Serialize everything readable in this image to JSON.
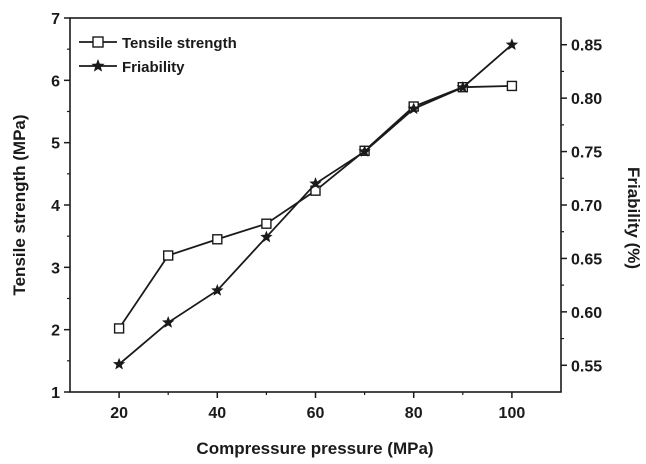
{
  "chart_data": {
    "type": "line",
    "x_label": "Compressure pressure (MPa)",
    "y_left_label": "Tensile strength (MPa)",
    "y_right_label": "Friability (%)",
    "x_range": [
      10,
      110
    ],
    "y_left_range": [
      1,
      7
    ],
    "y_right_range": [
      0.525,
      0.875
    ],
    "x_ticks": [
      20,
      40,
      60,
      80,
      100
    ],
    "x_tick_labels": [
      "20",
      "40",
      "60",
      "80",
      "100"
    ],
    "y_left_ticks": [
      1,
      2,
      3,
      4,
      5,
      6,
      7
    ],
    "y_left_tick_labels": [
      "1",
      "2",
      "3",
      "4",
      "5",
      "6",
      "7"
    ],
    "y_right_ticks": [
      0.55,
      0.6,
      0.65,
      0.7,
      0.75,
      0.8,
      0.85
    ],
    "y_right_tick_labels": [
      "0.55",
      "0.60",
      "0.65",
      "0.70",
      "0.75",
      "0.80",
      "0.85"
    ],
    "grid": false,
    "legend_position": "top-left",
    "x": [
      20,
      30,
      40,
      50,
      60,
      70,
      80,
      90,
      100
    ],
    "series": [
      {
        "name": "Tensile strength",
        "axis": "left",
        "marker": "open-square",
        "color": "#1a1a1a",
        "values": [
          2.02,
          3.19,
          3.45,
          3.7,
          4.23,
          4.87,
          5.58,
          5.89,
          5.91
        ]
      },
      {
        "name": "Friability",
        "axis": "right",
        "marker": "star",
        "color": "#1a1a1a",
        "values": [
          0.551,
          0.59,
          0.62,
          0.67,
          0.72,
          0.75,
          0.79,
          0.81,
          0.85
        ]
      }
    ]
  }
}
